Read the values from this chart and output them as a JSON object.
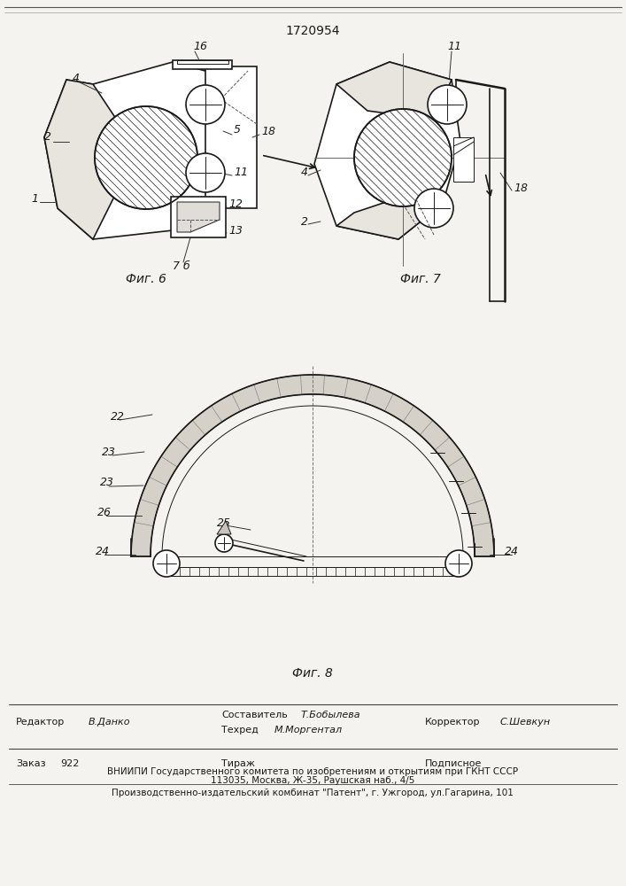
{
  "patent_number": "1720954",
  "bg_color": "#f5f3ef",
  "line_color": "#1a1a1a",
  "fig6_caption": "Фиг. 6",
  "fig7_caption": "Фиг. 7",
  "fig8_caption": "Фиг. 8",
  "footer": {
    "editor_label": "Редактор",
    "editor_name": "В.Данко",
    "composer_label": "Составитель",
    "composer_name": "Т.Бобылева",
    "techred_label": "Техред",
    "techred_name": "М.Моргентал",
    "corrector_label": "Корректор",
    "corrector_name": "С.Шевкун",
    "order_label": "Заказ",
    "order_num": "922",
    "tirazh_label": "Тираж",
    "podpisnoe_label": "Подписное",
    "vniipii_line1": "ВНИИПИ Государственного комитета по изобретениям и открытиям при ГКНТ СССР",
    "vniipii_line2": "113035, Москва, Ж-35, Раушская наб., 4/5",
    "plant_line": "Производственно-издательский комбинат \"Патент\", г. Ужгород, ул.Гагарина, 101"
  }
}
